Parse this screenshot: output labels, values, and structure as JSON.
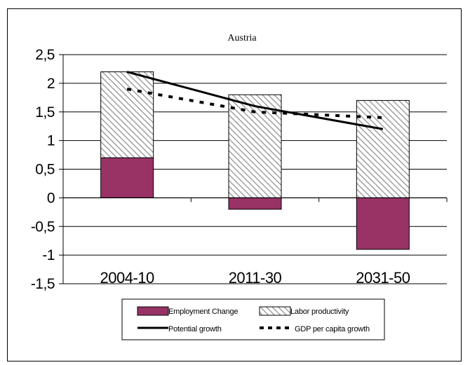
{
  "chart_data": {
    "type": "bar",
    "title": "Austria",
    "categories": [
      "2004-10",
      "2011-30",
      "2031-50"
    ],
    "ylim": [
      -1.5,
      2.5
    ],
    "yticks": [
      "2,5",
      "2",
      "1,5",
      "1",
      "0,5",
      "0",
      "-0,5",
      "-1",
      "-1,5"
    ],
    "ytick_values": [
      2.5,
      2,
      1.5,
      1,
      0.5,
      0,
      -0.5,
      -1,
      -1.5
    ],
    "grid": true,
    "legend_position": "bottom",
    "series": [
      {
        "name": "Employment Change",
        "kind": "stacked-bar",
        "color": "#993366",
        "values": [
          0.7,
          -0.2,
          -0.9
        ]
      },
      {
        "name": "Labor productivity",
        "kind": "stacked-bar",
        "pattern": "diagonal-hatch",
        "values": [
          1.5,
          1.8,
          1.7
        ]
      },
      {
        "name": "Potential growth",
        "kind": "line",
        "style": "solid",
        "color": "#000000",
        "values": [
          2.2,
          1.6,
          1.2
        ]
      },
      {
        "name": "GDP per capita growth",
        "kind": "line",
        "style": "dotted",
        "color": "#000000",
        "values": [
          1.9,
          1.5,
          1.4
        ]
      }
    ]
  }
}
